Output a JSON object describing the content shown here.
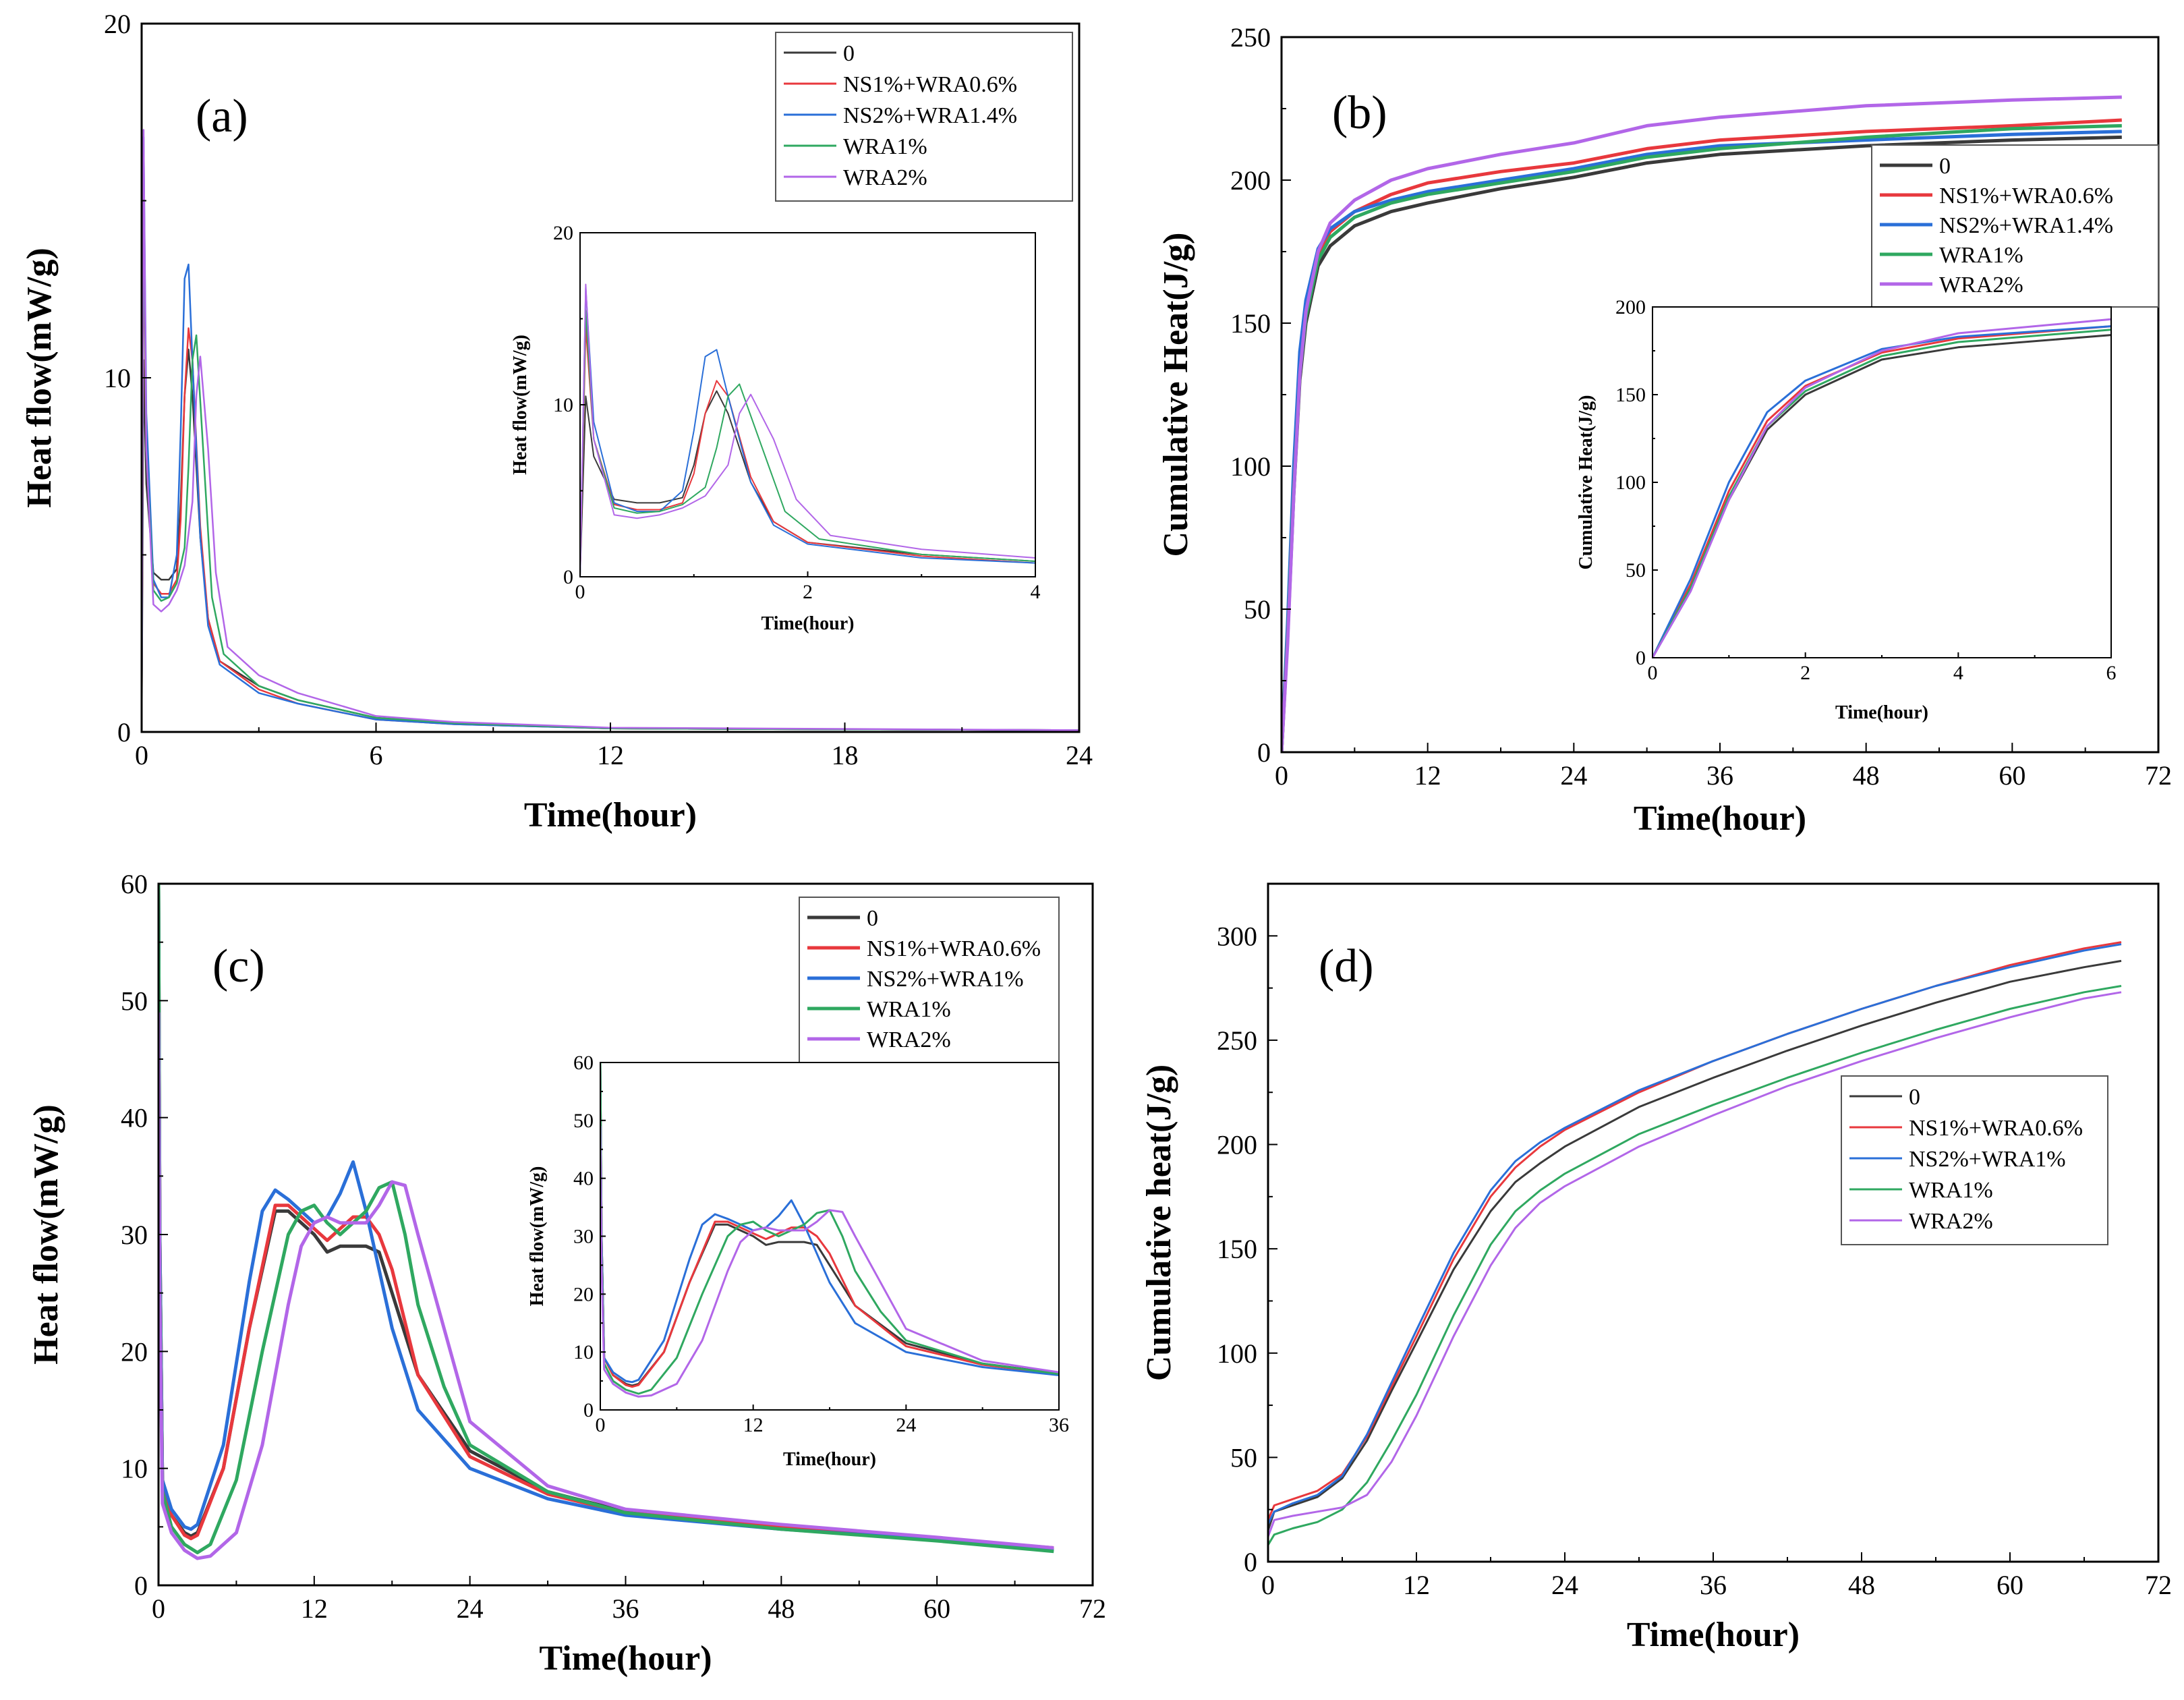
{
  "series_colors": {
    "0": "#3a3a3a",
    "NS1%+WRA0.6%": "#e8383d",
    "NS2%": "#2a6fd8",
    "WRA1%": "#2fa860",
    "WRA2%": "#b266e8"
  },
  "chart_data": [
    {
      "id": "a",
      "panel_label": "(a)",
      "type": "line",
      "xlabel": "Time(hour)",
      "ylabel": "Heat flow(mW/g)",
      "xlim": [
        0,
        24
      ],
      "ylim": [
        0,
        20
      ],
      "xticks": [
        "0",
        "6",
        "12",
        "18",
        "24"
      ],
      "yticks": [
        "0",
        "10",
        "20"
      ],
      "legend": [
        "0",
        "NS1%+WRA0.6%",
        "NS2%+WRA1.4%",
        "WRA1%",
        "WRA2%"
      ],
      "series": [
        {
          "name": "0",
          "x": [
            0,
            0.05,
            0.12,
            0.3,
            0.5,
            0.7,
            0.9,
            1.0,
            1.1,
            1.2,
            1.3,
            1.5,
            1.7,
            2,
            3,
            4,
            6,
            8,
            12,
            24
          ],
          "values": [
            0,
            10.5,
            7,
            4.5,
            4.3,
            4.3,
            4.6,
            6.5,
            9.5,
            10.8,
            9.5,
            5.5,
            3.2,
            2.0,
            1.3,
            0.9,
            0.4,
            0.25,
            0.1,
            0.05
          ]
        },
        {
          "name": "NS1%+WRA0.6%",
          "x": [
            0,
            0.05,
            0.12,
            0.3,
            0.5,
            0.7,
            0.9,
            1.0,
            1.1,
            1.2,
            1.3,
            1.5,
            1.7,
            2,
            3,
            4,
            6,
            8,
            12,
            24
          ],
          "values": [
            0,
            14.5,
            8,
            4.2,
            3.9,
            3.9,
            4.3,
            6,
            9.5,
            11.4,
            10.5,
            5.8,
            3.2,
            2.0,
            1.2,
            0.8,
            0.35,
            0.22,
            0.1,
            0.05
          ]
        },
        {
          "name": "NS2%+WRA1.4%",
          "x": [
            0,
            0.05,
            0.12,
            0.3,
            0.5,
            0.7,
            0.9,
            1.0,
            1.1,
            1.2,
            1.3,
            1.5,
            1.7,
            2,
            3,
            4,
            6,
            8,
            12,
            24
          ],
          "values": [
            0,
            16.8,
            9,
            4.3,
            3.8,
            3.8,
            5,
            8.5,
            12.8,
            13.2,
            10.5,
            5.5,
            3.0,
            1.9,
            1.1,
            0.8,
            0.35,
            0.22,
            0.1,
            0.05
          ]
        },
        {
          "name": "WRA1%",
          "x": [
            0,
            0.05,
            0.12,
            0.3,
            0.5,
            0.7,
            0.9,
            1.1,
            1.2,
            1.3,
            1.4,
            1.6,
            1.8,
            2.1,
            3,
            4,
            6,
            8,
            12,
            24
          ],
          "values": [
            0,
            15.5,
            8,
            4.0,
            3.7,
            3.8,
            4.2,
            5.2,
            7.5,
            10.5,
            11.2,
            7.5,
            3.8,
            2.2,
            1.3,
            0.9,
            0.4,
            0.25,
            0.1,
            0.05
          ]
        },
        {
          "name": "WRA2%",
          "x": [
            0,
            0.05,
            0.12,
            0.3,
            0.5,
            0.7,
            0.9,
            1.1,
            1.3,
            1.4,
            1.5,
            1.7,
            1.9,
            2.2,
            3,
            4,
            6,
            8,
            12,
            24
          ],
          "values": [
            0,
            17,
            8,
            3.6,
            3.4,
            3.6,
            4.0,
            4.7,
            6.5,
            9.5,
            10.6,
            8,
            4.5,
            2.4,
            1.6,
            1.1,
            0.45,
            0.28,
            0.12,
            0.05
          ]
        }
      ],
      "inset": {
        "xlabel": "Time(hour)",
        "ylabel": "Heat flow(mW/g)",
        "xlim": [
          0,
          4
        ],
        "ylim": [
          0,
          20
        ],
        "xticks": [
          "0",
          "2",
          "4"
        ],
        "yticks": [
          "0",
          "10",
          "20"
        ]
      }
    },
    {
      "id": "b",
      "panel_label": "(b)",
      "type": "line",
      "xlabel": "Time(hour)",
      "ylabel": "Cumulative Heat(J/g)",
      "xlim": [
        0,
        72
      ],
      "ylim": [
        0,
        250
      ],
      "xticks": [
        "0",
        "12",
        "24",
        "36",
        "48",
        "60",
        "72"
      ],
      "yticks": [
        "0",
        "50",
        "100",
        "150",
        "200",
        "250"
      ],
      "legend": [
        "0",
        "NS1%+WRA0.6%",
        "NS2%+WRA1.4%",
        "WRA1%",
        "WRA2%"
      ],
      "series": [
        {
          "name": "0",
          "x": [
            0,
            0.5,
            1,
            1.5,
            2,
            3,
            4,
            6,
            9,
            12,
            18,
            24,
            30,
            36,
            48,
            60,
            69
          ],
          "values": [
            0,
            40,
            90,
            130,
            150,
            170,
            177,
            184,
            189,
            192,
            197,
            201,
            206,
            209,
            212,
            214,
            215
          ]
        },
        {
          "name": "NS1%+WRA0.6%",
          "x": [
            0,
            0.5,
            1,
            1.5,
            2,
            3,
            4,
            6,
            9,
            12,
            18,
            24,
            30,
            36,
            48,
            60,
            69
          ],
          "values": [
            0,
            42,
            95,
            135,
            155,
            174,
            182,
            189,
            195,
            199,
            203,
            206,
            211,
            214,
            217,
            219,
            221
          ]
        },
        {
          "name": "NS2%+WRA1.4%",
          "x": [
            0,
            0.5,
            1,
            1.5,
            2,
            3,
            4,
            6,
            9,
            12,
            18,
            24,
            30,
            36,
            48,
            60,
            69
          ],
          "values": [
            0,
            45,
            100,
            140,
            158,
            176,
            183,
            189,
            193,
            196,
            200,
            204,
            209,
            212,
            214,
            216,
            217
          ]
        },
        {
          "name": "WRA1%",
          "x": [
            0,
            0.5,
            1,
            1.5,
            2,
            3,
            4,
            6,
            9,
            12,
            18,
            24,
            30,
            36,
            48,
            60,
            69
          ],
          "values": [
            0,
            40,
            92,
            132,
            152,
            172,
            180,
            187,
            192,
            195,
            199,
            203,
            208,
            211,
            215,
            218,
            219
          ]
        },
        {
          "name": "WRA2%",
          "x": [
            0,
            0.5,
            1,
            1.5,
            2,
            3,
            4,
            6,
            9,
            12,
            18,
            24,
            30,
            36,
            48,
            60,
            69
          ],
          "values": [
            0,
            38,
            90,
            132,
            154,
            175,
            185,
            193,
            200,
            204,
            209,
            213,
            219,
            222,
            226,
            228,
            229
          ]
        }
      ],
      "inset": {
        "xlabel": "Time(hour)",
        "ylabel": "Cumulative Heat(J/g)",
        "xlim": [
          0,
          6
        ],
        "ylim": [
          0,
          200
        ],
        "xticks": [
          "0",
          "2",
          "4",
          "6"
        ],
        "yticks": [
          "0",
          "50",
          "100",
          "150",
          "200"
        ]
      }
    },
    {
      "id": "c",
      "panel_label": "(c)",
      "type": "line",
      "xlabel": "Time(hour)",
      "ylabel": "Heat flow(mW/g)",
      "xlim": [
        0,
        72
      ],
      "ylim": [
        0,
        60
      ],
      "xticks": [
        "0",
        "12",
        "24",
        "36",
        "48",
        "60",
        "72"
      ],
      "yticks": [
        "0",
        "10",
        "20",
        "30",
        "40",
        "50",
        "60"
      ],
      "legend": [
        "0",
        "NS1%+WRA0.6%",
        "NS2%+WRA1%",
        "WRA1%",
        "WRA2%"
      ],
      "series": [
        {
          "name": "0",
          "x": [
            0,
            0.1,
            0.3,
            1,
            2,
            2.5,
            3,
            5,
            7,
            9,
            10,
            11,
            12,
            13,
            14,
            15,
            16,
            17,
            18,
            20,
            24,
            30,
            36,
            48,
            60,
            69
          ],
          "values": [
            60,
            30,
            9,
            6,
            4.5,
            4.2,
            4.5,
            10,
            22,
            32,
            32,
            31,
            30,
            28.5,
            29,
            29,
            29,
            28.5,
            25,
            18,
            11.5,
            8,
            6.3,
            5,
            4,
            3.1
          ]
        },
        {
          "name": "NS1%+WRA0.6%",
          "x": [
            0,
            0.1,
            0.3,
            1,
            2,
            2.5,
            3,
            5,
            7,
            9,
            10,
            11,
            12,
            13,
            14,
            15,
            16,
            17,
            18,
            20,
            24,
            30,
            36,
            48,
            60,
            69
          ],
          "values": [
            60,
            30,
            9,
            6,
            4.3,
            4.0,
            4.3,
            10,
            22,
            32.5,
            32.5,
            31.5,
            30.5,
            29.5,
            30.5,
            31.5,
            31.5,
            30,
            27,
            18,
            11,
            7.8,
            6.2,
            5,
            4,
            3.2
          ]
        },
        {
          "name": "NS2%+WRA1%",
          "x": [
            0,
            0.1,
            0.3,
            1,
            2,
            2.5,
            3,
            5,
            7,
            8,
            9,
            10,
            11,
            12,
            13,
            14,
            15,
            16,
            17,
            18,
            20,
            24,
            30,
            36,
            48,
            60,
            69
          ],
          "values": [
            60,
            30,
            9,
            6.5,
            5,
            4.8,
            5.2,
            12,
            26,
            32,
            33.8,
            33,
            32,
            31,
            31.5,
            33.5,
            36.2,
            32,
            27,
            22,
            15,
            10,
            7.4,
            6,
            4.8,
            3.9,
            3.0
          ]
        },
        {
          "name": "WRA1%",
          "x": [
            0,
            0.1,
            0.3,
            1,
            2,
            3,
            4,
            6,
            8,
            10,
            11,
            12,
            13,
            14,
            16,
            17,
            18,
            19,
            20,
            22,
            24,
            30,
            36,
            48,
            60,
            69
          ],
          "values": [
            60,
            28,
            8,
            5,
            3.5,
            2.8,
            3.5,
            9,
            20,
            30,
            32,
            32.5,
            31,
            30,
            32,
            34,
            34.5,
            30,
            24,
            17,
            12,
            8,
            6.2,
            4.8,
            3.8,
            2.9
          ]
        },
        {
          "name": "WRA2%",
          "x": [
            0,
            0.1,
            0.3,
            1,
            2,
            3,
            4,
            6,
            8,
            10,
            11,
            12,
            13,
            14,
            16,
            17,
            18,
            19,
            20,
            22,
            24,
            30,
            36,
            48,
            60,
            69
          ],
          "values": [
            49,
            25,
            7,
            4.5,
            3,
            2.3,
            2.5,
            4.5,
            12,
            24,
            29,
            31,
            31.5,
            31,
            31,
            32.5,
            34.5,
            34.2,
            30,
            22,
            14,
            8.5,
            6.5,
            5.2,
            4.1,
            3.2
          ]
        }
      ],
      "inset": {
        "xlabel": "Time(hour)",
        "ylabel": "Heat flow(mW/g)",
        "xlim": [
          0,
          36
        ],
        "ylim": [
          0,
          60
        ],
        "xticks": [
          "0",
          "12",
          "24",
          "36"
        ],
        "yticks": [
          "0",
          "10",
          "20",
          "30",
          "40",
          "50",
          "60"
        ]
      }
    },
    {
      "id": "d",
      "panel_label": "(d)",
      "type": "line",
      "xlabel": "Time(hour)",
      "ylabel": "Cumulative heat(J/g)",
      "xlim": [
        0,
        72
      ],
      "ylim": [
        0,
        325
      ],
      "xticks": [
        "0",
        "12",
        "24",
        "36",
        "48",
        "60",
        "72"
      ],
      "yticks": [
        "0",
        "50",
        "100",
        "150",
        "200",
        "250",
        "300"
      ],
      "legend": [
        "0",
        "NS1%+WRA0.6%",
        "NS2%+WRA1%",
        "WRA1%",
        "WRA2%"
      ],
      "series": [
        {
          "name": "0",
          "x": [
            0,
            0.5,
            2,
            4,
            6,
            8,
            10,
            12,
            15,
            18,
            20,
            22,
            24,
            30,
            36,
            42,
            48,
            54,
            60,
            66,
            69
          ],
          "values": [
            15,
            24,
            27,
            31,
            40,
            58,
            82,
            105,
            140,
            168,
            182,
            191,
            199,
            218,
            232,
            245,
            257,
            268,
            278,
            285,
            288
          ]
        },
        {
          "name": "NS1%+WRA0.6%",
          "x": [
            0,
            0.5,
            2,
            4,
            6,
            8,
            10,
            12,
            15,
            18,
            20,
            22,
            24,
            30,
            36,
            42,
            48,
            54,
            60,
            66,
            69
          ],
          "values": [
            20,
            27,
            30,
            34,
            42,
            60,
            84,
            108,
            145,
            175,
            189,
            199,
            207,
            225,
            240,
            253,
            265,
            276,
            286,
            294,
            297
          ]
        },
        {
          "name": "NS2%+WRA1%",
          "x": [
            0,
            0.5,
            2,
            4,
            6,
            8,
            10,
            12,
            15,
            18,
            20,
            22,
            24,
            30,
            36,
            42,
            48,
            54,
            60,
            66,
            69
          ],
          "values": [
            18,
            24,
            28,
            32,
            41,
            61,
            86,
            111,
            148,
            178,
            192,
            201,
            208,
            226,
            240,
            253,
            265,
            276,
            285,
            293,
            296
          ]
        },
        {
          "name": "WRA1%",
          "x": [
            0,
            0.5,
            2,
            4,
            6,
            8,
            10,
            12,
            15,
            18,
            20,
            22,
            24,
            30,
            36,
            42,
            48,
            54,
            60,
            66,
            69
          ],
          "values": [
            8,
            13,
            16,
            19,
            25,
            38,
            58,
            80,
            118,
            152,
            168,
            178,
            186,
            205,
            219,
            232,
            244,
            255,
            265,
            273,
            276
          ]
        },
        {
          "name": "WRA2%",
          "x": [
            0,
            0.5,
            2,
            4,
            6,
            8,
            10,
            12,
            15,
            18,
            20,
            22,
            24,
            30,
            36,
            42,
            48,
            54,
            60,
            66,
            69
          ],
          "values": [
            12,
            20,
            22,
            24,
            26,
            32,
            48,
            70,
            108,
            142,
            160,
            172,
            180,
            199,
            214,
            228,
            240,
            251,
            261,
            270,
            273
          ]
        }
      ]
    }
  ]
}
